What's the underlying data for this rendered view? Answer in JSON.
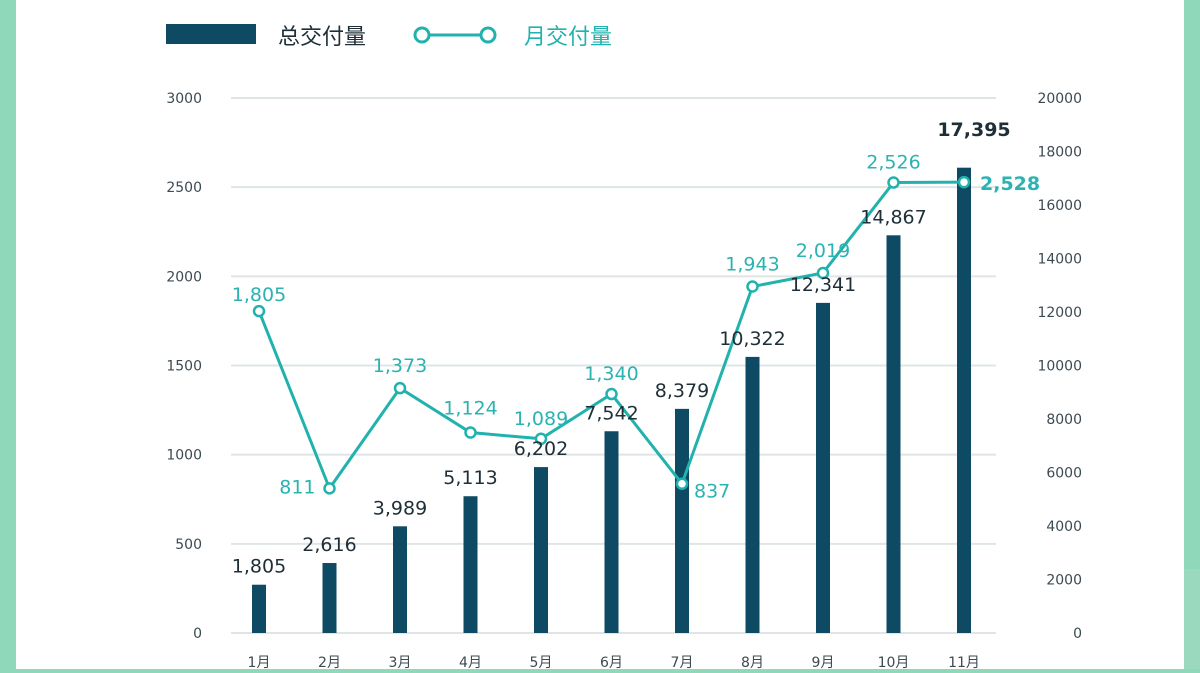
{
  "colors": {
    "bar": "#0e4a63",
    "line": "#22b2ae",
    "grid": "#dfe4e6",
    "frame_background": "#8fd8b9"
  },
  "legend": {
    "bar_label": "总交付量",
    "line_label": "月交付量"
  },
  "chart_data": {
    "type": "bar",
    "categories": [
      "1月",
      "2月",
      "3月",
      "4月",
      "5月",
      "6月",
      "7月",
      "8月",
      "9月",
      "10月",
      "11月"
    ],
    "series": [
      {
        "name": "总交付量",
        "type": "bar",
        "axis": "right",
        "values": [
          1805,
          2616,
          3989,
          5113,
          6202,
          7542,
          8379,
          10322,
          12341,
          14867,
          17395
        ],
        "labels": [
          "1,805",
          "2,616",
          "3,989",
          "5,113",
          "6,202",
          "7,542",
          "8,379",
          "10,322",
          "12,341",
          "14,867",
          "17,395"
        ]
      },
      {
        "name": "月交付量",
        "type": "line",
        "axis": "left",
        "values": [
          1805,
          811,
          1373,
          1124,
          1089,
          1340,
          837,
          1943,
          2019,
          2526,
          2528
        ],
        "labels": [
          "1,805",
          "811",
          "1,373",
          "1,124",
          "1,089",
          "1,340",
          "837",
          "1,943",
          "2,019",
          "2,526",
          "2,528"
        ]
      }
    ],
    "y_left": {
      "lim": [
        0,
        3000
      ],
      "ticks": [
        "0",
        "500",
        "1000",
        "1500",
        "2000",
        "2500",
        "3000"
      ]
    },
    "y_right": {
      "lim": [
        0,
        20000
      ],
      "ticks": [
        "0",
        "2000",
        "4000",
        "6000",
        "8000",
        "10000",
        "12000",
        "14000",
        "16000",
        "18000",
        "20000"
      ]
    },
    "grid": true,
    "legend_position": "top-left"
  }
}
